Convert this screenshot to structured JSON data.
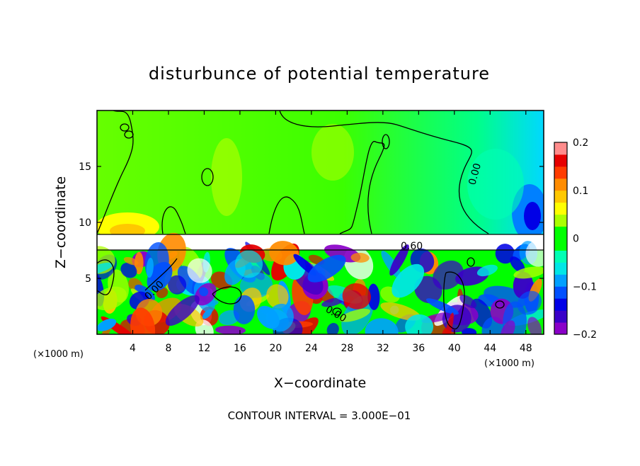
{
  "chart_data": {
    "type": "heatmap",
    "title": "disturbunce of potential temperature",
    "xlabel": "X−coordinate",
    "ylabel": "Z−coordinate",
    "x_unit_left": "(×1000 m)",
    "x_unit_right": "(×1000 m)",
    "xlim": [
      0,
      50
    ],
    "ylim": [
      0,
      20
    ],
    "x_ticks": [
      4,
      8,
      12,
      16,
      20,
      24,
      28,
      32,
      36,
      40,
      44,
      48
    ],
    "y_ticks": [
      5,
      10,
      15
    ],
    "colorbar": {
      "range": [
        -0.2,
        0.2
      ],
      "tick_labels": [
        "0.2",
        "0.1",
        "0",
        "−0.1",
        "−0.2"
      ],
      "tick_values": [
        0.2,
        0.1,
        0,
        -0.1,
        -0.2
      ],
      "colors": [
        "#8a00c8",
        "#3a00c8",
        "#0000e6",
        "#0050ff",
        "#00a0ff",
        "#00e6e6",
        "#00ffb4",
        "#00ff00",
        "#00ff00",
        "#aaff00",
        "#ffff00",
        "#ffc800",
        "#ff8c00",
        "#ff3c00",
        "#e60000",
        "#ff8c8c"
      ]
    },
    "contour_labels": [
      "0.00",
      "0.00",
      "0.60",
      "0.00"
    ],
    "footer": "CONTOUR INTERVAL = 3.000E−01"
  }
}
